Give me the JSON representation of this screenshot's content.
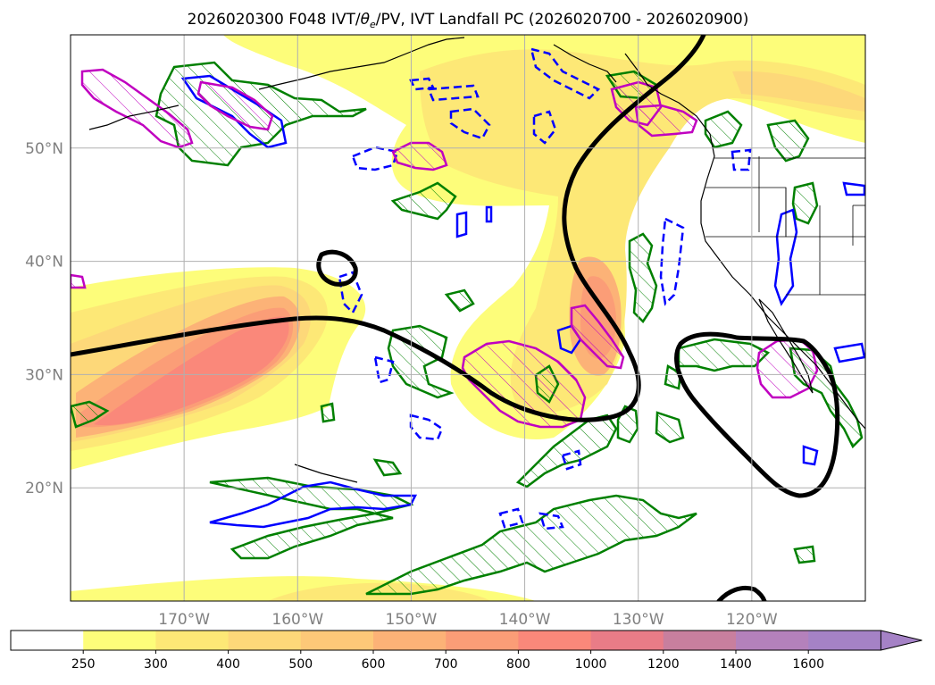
{
  "title": "2026020300 F048 IVT/θe/PV, IVT Landfall PC (2026020700 - 2026020900)",
  "title_parts": {
    "prefix": "2026020300 F048 IVT/",
    "theta": "θ",
    "theta_sub": "e",
    "suffix": "/PV, IVT Landfall PC (2026020700 - 2026020900)"
  },
  "map": {
    "projection": "PlateCarree",
    "lon_range": [
      -180,
      -110
    ],
    "lat_range": [
      10,
      60
    ],
    "lat_ticks": [
      {
        "value": 20,
        "label": "20°N"
      },
      {
        "value": 30,
        "label": "30°N"
      },
      {
        "value": 40,
        "label": "40°N"
      },
      {
        "value": 50,
        "label": "50°N"
      }
    ],
    "lon_ticks": [
      {
        "value": -170,
        "label": "170°W"
      },
      {
        "value": -160,
        "label": "160°W"
      },
      {
        "value": -150,
        "label": "150°W"
      },
      {
        "value": -140,
        "label": "140°W"
      },
      {
        "value": -130,
        "label": "130°W"
      },
      {
        "value": -120,
        "label": "120°W"
      }
    ],
    "grid": true
  },
  "colorbar": {
    "levels": [
      250,
      300,
      400,
      500,
      600,
      700,
      800,
      1000,
      1200,
      1400,
      1600
    ],
    "colors": [
      "#ffffff",
      "#fdfd7a",
      "#fde876",
      "#fdd879",
      "#fdc878",
      "#fcb277",
      "#fb9d77",
      "#fa887a",
      "#e97c87",
      "#c87f9e",
      "#b481bb",
      "#a582c6"
    ],
    "extend": "max",
    "orientation": "horizontal"
  },
  "legend_colors": {
    "contour_thick": "#000000",
    "contour_green": "#008000",
    "contour_blue": "#0000ff",
    "contour_magenta": "#c000c0",
    "coast": "#000000",
    "grid": "#b0b0b0"
  }
}
